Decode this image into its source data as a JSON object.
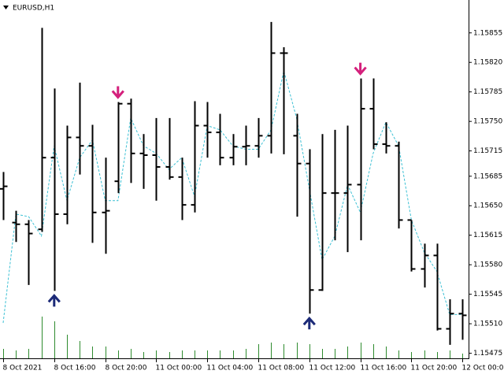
{
  "chart_data": {
    "type": "ohlc",
    "title": "EURUSD,H1",
    "categories": [
      "8 Oct 2021",
      null,
      null,
      null,
      "8 Oct 16:00",
      null,
      null,
      null,
      "8 Oct 20:00",
      null,
      null,
      null,
      "11 Oct 00:00",
      null,
      null,
      null,
      "11 Oct 04:00",
      null,
      null,
      null,
      "11 Oct 08:00",
      null,
      null,
      null,
      "11 Oct 12:00",
      null,
      null,
      null,
      "11 Oct 16:00",
      null,
      null,
      null,
      "11 Oct 20:00",
      null,
      null,
      null,
      "12 Oct 00:00"
    ],
    "open": [
      1.1567,
      1.1563,
      1.15628,
      1.15622,
      1.15707,
      1.1564,
      1.15731,
      1.15721,
      1.15642,
      1.15679,
      1.15771,
      1.15712,
      1.1571,
      1.15696,
      1.15684,
      1.15651,
      1.15745,
      1.15737,
      1.15707,
      1.1572,
      1.15721,
      1.15733,
      1.15831,
      1.15733,
      1.157,
      1.1555,
      1.15665,
      1.15665,
      1.15675,
      1.15765,
      1.15723,
      1.15721,
      1.15633,
      1.15575,
      1.15591,
      1.15504,
      1.15522
    ],
    "high": [
      1.1569,
      1.15644,
      1.15633,
      1.15861,
      1.15789,
      1.15745,
      1.15796,
      1.15746,
      1.15707,
      1.15773,
      1.15777,
      1.15735,
      1.15754,
      1.15754,
      1.15707,
      1.15774,
      1.15773,
      1.15759,
      1.15735,
      1.15745,
      1.15754,
      1.15868,
      1.15838,
      1.15759,
      1.15717,
      1.15735,
      1.1574,
      1.15745,
      1.15801,
      1.15801,
      1.15749,
      1.15726,
      1.15633,
      1.15605,
      1.15605,
      1.15539,
      1.15539
    ],
    "low": [
      1.15633,
      1.15607,
      1.15556,
      1.15619,
      1.15549,
      1.15628,
      1.15687,
      1.15606,
      1.15593,
      1.15665,
      1.15677,
      1.1567,
      1.15656,
      1.15681,
      1.15633,
      1.15642,
      1.15707,
      1.15698,
      1.15698,
      1.15698,
      1.15707,
      1.15712,
      1.15711,
      1.15637,
      1.15522,
      1.15549,
      1.15609,
      1.15595,
      1.15609,
      1.15717,
      1.15712,
      1.15623,
      1.15572,
      1.15553,
      1.15502,
      1.15485,
      1.15491
    ],
    "close": [
      1.15673,
      1.15628,
      1.15617,
      1.15707,
      1.1564,
      1.15731,
      1.15721,
      1.15642,
      1.15644,
      1.15771,
      1.15712,
      1.1571,
      1.15696,
      1.15684,
      1.15651,
      1.15745,
      1.15737,
      1.15707,
      1.1572,
      1.15721,
      1.15733,
      1.15831,
      1.15831,
      1.157,
      1.1555,
      1.15665,
      1.15665,
      1.15675,
      1.15765,
      1.15723,
      1.15721,
      1.15633,
      1.15575,
      1.15591,
      1.15504,
      1.15522,
      1.1552
    ],
    "bar_color": "#000000",
    "moving_average": {
      "color": "#3cc0d4",
      "values": [
        1.15511,
        1.1564,
        1.15637,
        1.15614,
        1.15721,
        1.15656,
        1.15707,
        1.15728,
        1.15656,
        1.15656,
        1.15754,
        1.15721,
        1.15712,
        1.15693,
        1.15707,
        1.15661,
        1.15745,
        1.1574,
        1.15721,
        1.15717,
        1.15717,
        1.1574,
        1.1581,
        1.15754,
        1.1567,
        1.15586,
        1.15614,
        1.15675,
        1.15642,
        1.15712,
        1.15749,
        1.15721,
        1.15633,
        1.15595,
        1.15572,
        1.15521,
        1.15521
      ]
    },
    "volume": {
      "color": "#2e8b2e",
      "ylim": [
        0,
        60
      ],
      "values": [
        12,
        10,
        12,
        53,
        47,
        30,
        22,
        15,
        15,
        10,
        12,
        8,
        10,
        8,
        10,
        10,
        10,
        10,
        10,
        12,
        18,
        20,
        18,
        20,
        18,
        12,
        12,
        15,
        20,
        18,
        15,
        10,
        8,
        10,
        8,
        10,
        6
      ]
    },
    "buy_signals": {
      "color": "#1c2a78",
      "bars": [
        4,
        24
      ]
    },
    "sell_signals": {
      "color": "#d4207c",
      "bars": [
        9,
        28
      ]
    },
    "ylim": [
      1.15469,
      1.15894
    ],
    "yticks": [
      1.15855,
      {
        "value": 1.1582,
        "label": "1.15820"
      },
      1.15785,
      {
        "value": 1.1575,
        "label": "1.15750"
      },
      1.15715,
      1.15685,
      {
        "value": 1.1565,
        "label": "1.15650"
      },
      1.15615,
      {
        "value": 1.1558,
        "label": "1.15580"
      },
      1.15545,
      {
        "value": 1.1551,
        "label": "1.15510"
      },
      1.15475
    ]
  }
}
